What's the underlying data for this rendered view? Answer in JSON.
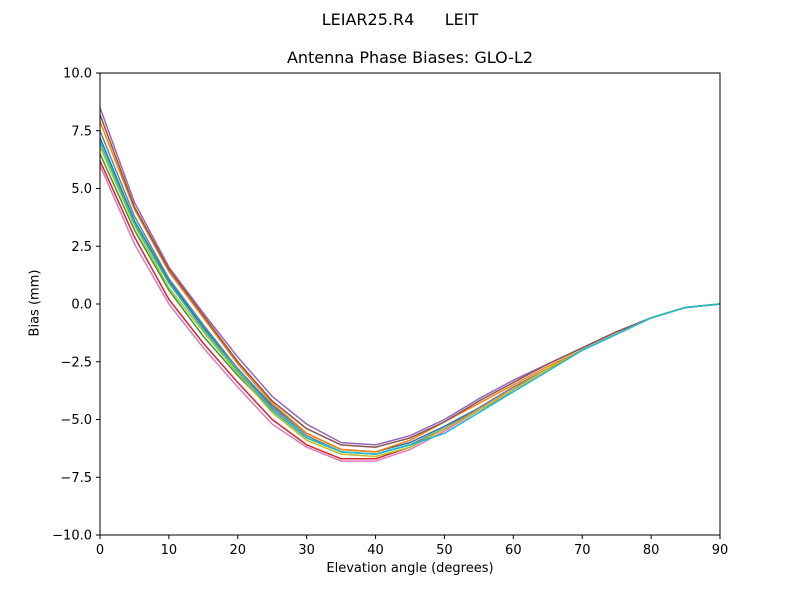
{
  "chart_data": {
    "type": "line",
    "suptitle": "LEIAR25.R4      LEIT",
    "title": "Antenna Phase Biases: GLO-L2",
    "xlabel": "Elevation angle (degrees)",
    "ylabel": "Bias (mm)",
    "xlim": [
      0,
      90
    ],
    "ylim": [
      -10,
      10
    ],
    "xticks": [
      0,
      10,
      20,
      30,
      40,
      50,
      60,
      70,
      80,
      90
    ],
    "xtick_labels": [
      "0",
      "10",
      "20",
      "30",
      "40",
      "50",
      "60",
      "70",
      "80",
      "90"
    ],
    "yticks": [
      -10,
      -7.5,
      -5,
      -2.5,
      0,
      2.5,
      5,
      7.5,
      10
    ],
    "ytick_labels": [
      "−10.0",
      "−7.5",
      "−5.0",
      "−2.5",
      "0.0",
      "2.5",
      "5.0",
      "7.5",
      "10.0"
    ],
    "grid": false,
    "legend": "none",
    "x": [
      0,
      5,
      10,
      15,
      20,
      25,
      30,
      35,
      40,
      45,
      50,
      55,
      60,
      65,
      70,
      75,
      80,
      85,
      90
    ],
    "series": [
      {
        "color": "#1f77b4",
        "values": [
          7.2,
          3.6,
          1.0,
          -1.0,
          -2.8,
          -4.4,
          -5.6,
          -6.3,
          -6.4,
          -6.0,
          -5.3,
          -4.5,
          -3.6,
          -2.8,
          -2.0,
          -1.3,
          -0.6,
          -0.15,
          0.0
        ]
      },
      {
        "color": "#ff7f0e",
        "values": [
          7.9,
          4.1,
          1.4,
          -0.6,
          -2.6,
          -4.3,
          -5.6,
          -6.3,
          -6.4,
          -5.9,
          -5.1,
          -4.3,
          -3.5,
          -2.7,
          -2.0,
          -1.3,
          -0.6,
          -0.15,
          0.0
        ]
      },
      {
        "color": "#2ca02c",
        "values": [
          6.5,
          3.2,
          0.6,
          -1.4,
          -3.1,
          -4.6,
          -5.8,
          -6.4,
          -6.5,
          -6.1,
          -5.4,
          -4.6,
          -3.7,
          -2.8,
          -2.0,
          -1.3,
          -0.6,
          -0.15,
          0.0
        ]
      },
      {
        "color": "#d62728",
        "values": [
          6.2,
          2.9,
          0.2,
          -1.7,
          -3.4,
          -5.0,
          -6.1,
          -6.7,
          -6.7,
          -6.2,
          -5.4,
          -4.6,
          -3.7,
          -2.8,
          -2.0,
          -1.3,
          -0.6,
          -0.15,
          0.0
        ]
      },
      {
        "color": "#9467bd",
        "values": [
          8.5,
          4.4,
          1.6,
          -0.4,
          -2.3,
          -4.0,
          -5.2,
          -6.0,
          -6.1,
          -5.7,
          -5.0,
          -4.1,
          -3.3,
          -2.6,
          -1.9,
          -1.2,
          -0.6,
          -0.15,
          0.0
        ]
      },
      {
        "color": "#8c564b",
        "values": [
          8.2,
          4.2,
          1.5,
          -0.5,
          -2.5,
          -4.2,
          -5.4,
          -6.1,
          -6.2,
          -5.8,
          -5.1,
          -4.2,
          -3.4,
          -2.6,
          -1.9,
          -1.2,
          -0.6,
          -0.15,
          0.0
        ]
      },
      {
        "color": "#e377c2",
        "values": [
          6.0,
          2.6,
          0.0,
          -1.9,
          -3.6,
          -5.2,
          -6.2,
          -6.8,
          -6.8,
          -6.3,
          -5.5,
          -4.6,
          -3.8,
          -2.9,
          -2.0,
          -1.3,
          -0.6,
          -0.15,
          0.0
        ]
      },
      {
        "color": "#7f7f7f",
        "values": [
          7.5,
          3.8,
          1.1,
          -0.9,
          -2.8,
          -4.5,
          -5.7,
          -6.4,
          -6.5,
          -6.1,
          -5.4,
          -4.5,
          -3.6,
          -2.8,
          -2.0,
          -1.3,
          -0.6,
          -0.15,
          0.0
        ]
      },
      {
        "color": "#bcbd22",
        "values": [
          6.8,
          3.4,
          0.7,
          -1.2,
          -3.0,
          -4.7,
          -5.9,
          -6.5,
          -6.6,
          -6.2,
          -5.4,
          -4.6,
          -3.7,
          -2.8,
          -2.0,
          -1.3,
          -0.6,
          -0.15,
          0.0
        ]
      },
      {
        "color": "#17becf",
        "values": [
          7.0,
          3.5,
          0.9,
          -1.1,
          -2.9,
          -4.6,
          -5.8,
          -6.4,
          -6.5,
          -6.1,
          -5.6,
          -4.7,
          -3.8,
          -2.9,
          -2.0,
          -1.3,
          -0.6,
          -0.15,
          0.0
        ]
      }
    ]
  }
}
